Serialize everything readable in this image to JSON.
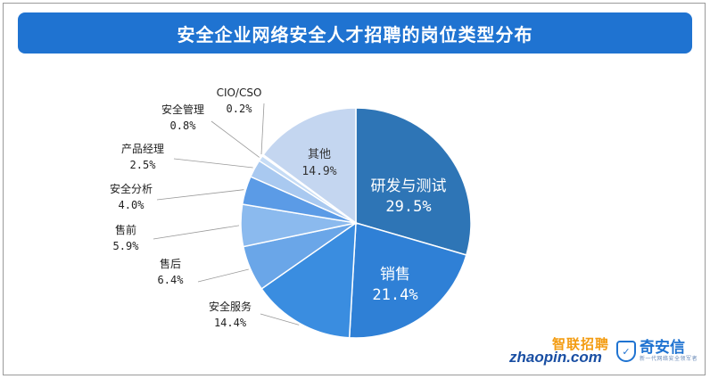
{
  "title": "安全企业网络安全人才招聘的岗位类型分布",
  "colors": {
    "banner": "#1f73d1",
    "leader_line": "#999999"
  },
  "logos": {
    "zhaopin_cn": "智联招聘",
    "zhaopin_en": "zhaopin.com",
    "qianxin_name": "奇安信",
    "qianxin_sub": "新一代网络安全领军者",
    "qianxin_icon": "shield-icon"
  },
  "chart_data": {
    "type": "pie",
    "title": "安全企业网络安全人才招聘的岗位类型分布",
    "slices": [
      {
        "label": "研发与测试",
        "value": 29.5,
        "display": "29.5%",
        "color": "#2e75b6",
        "label_inside": true
      },
      {
        "label": "销售",
        "value": 21.4,
        "display": "21.4%",
        "color": "#2f80d6",
        "label_inside": true
      },
      {
        "label": "安全服务",
        "value": 14.4,
        "display": "14.4%",
        "color": "#3a8de0",
        "label_inside": false
      },
      {
        "label": "售后",
        "value": 6.4,
        "display": "6.4%",
        "color": "#6aa6e8",
        "label_inside": false
      },
      {
        "label": "售前",
        "value": 5.9,
        "display": "5.9%",
        "color": "#8bbaee",
        "label_inside": false
      },
      {
        "label": "安全分析",
        "value": 4.0,
        "display": "4.0%",
        "color": "#5b9be6",
        "label_inside": false
      },
      {
        "label": "产品经理",
        "value": 2.5,
        "display": "2.5%",
        "color": "#a9c9f0",
        "label_inside": false
      },
      {
        "label": "安全管理",
        "value": 0.8,
        "display": "0.8%",
        "color": "#c6dcf5",
        "label_inside": false
      },
      {
        "label": "CIO/CSO",
        "value": 0.2,
        "display": "0.2%",
        "color": "#dbe8f8",
        "label_inside": false
      },
      {
        "label": "其他",
        "value": 14.9,
        "display": "14.9%",
        "color": "#c4d6f0",
        "label_inside": true
      }
    ]
  }
}
